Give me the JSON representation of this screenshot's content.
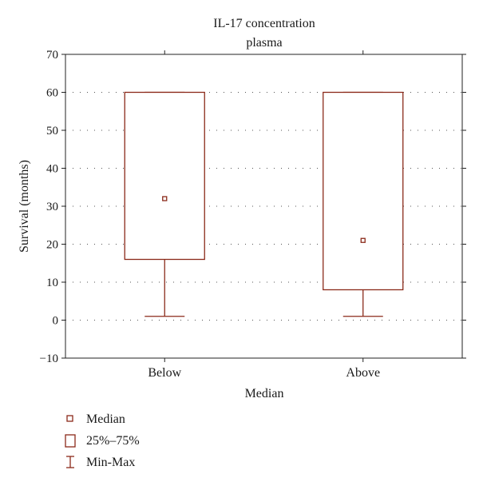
{
  "colors": {
    "accent": "#8b2a1a",
    "grid": "#555555",
    "axis": "#222222"
  },
  "chart_data": {
    "type": "box",
    "title": "IL-17 concentration",
    "subtitle": "plasma",
    "xlabel": "Median",
    "ylabel": "Survival (months)",
    "ylim": [
      -10,
      70
    ],
    "yticks": [
      -10,
      0,
      10,
      20,
      30,
      40,
      50,
      60,
      70
    ],
    "ytick_labels": [
      "−10",
      "0",
      "10",
      "20",
      "30",
      "40",
      "50",
      "60",
      "70"
    ],
    "grid": "dotted horizontal",
    "categories": [
      "Below",
      "Above"
    ],
    "boxes": [
      {
        "category": "Below",
        "min": 1,
        "q1": 16,
        "median": 32,
        "q3": 60,
        "max": 60
      },
      {
        "category": "Above",
        "min": 1,
        "q1": 8,
        "median": 21,
        "q3": 60,
        "max": 60
      }
    ],
    "legend": {
      "position": "bottom-left",
      "items": [
        {
          "symbol": "median-marker",
          "label": "Median"
        },
        {
          "symbol": "box",
          "label": "25%–75%"
        },
        {
          "symbol": "whisker",
          "label": "Min-Max"
        }
      ]
    }
  }
}
